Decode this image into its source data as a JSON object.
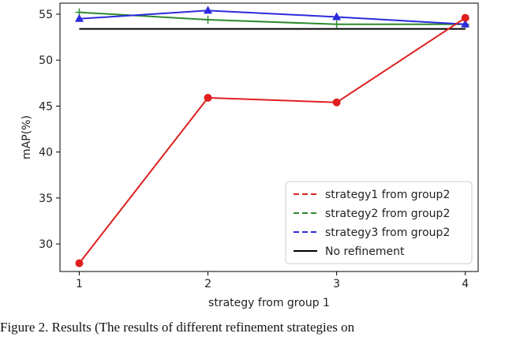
{
  "chart_data": {
    "type": "line",
    "xlabel": "strategy from group 1",
    "ylabel": "mAP(%)",
    "x": [
      1,
      2,
      3,
      4
    ],
    "x_ticks": [
      "1",
      "2",
      "3",
      "4"
    ],
    "y_ticks": [
      "30",
      "35",
      "40",
      "45",
      "50",
      "55"
    ],
    "xlim": [
      0.85,
      4.1
    ],
    "ylim": [
      27.0,
      56.2
    ],
    "legend_position": "lower-right",
    "series": [
      {
        "name": "strategy1 from group2",
        "values": [
          27.9,
          45.9,
          45.4,
          54.6
        ],
        "color": "#e02020",
        "marker": "circle",
        "line": "solid"
      },
      {
        "name": "strategy2 from group2",
        "values": [
          55.2,
          54.4,
          53.9,
          53.9
        ],
        "color": "#2e8b2e",
        "marker": "plus",
        "line": "solid"
      },
      {
        "name": "strategy3 from group2",
        "values": [
          54.5,
          55.4,
          54.7,
          53.9
        ],
        "color": "#2b2bdc",
        "marker": "triangle",
        "line": "solid"
      },
      {
        "name": "No refinement",
        "values": [
          53.4,
          53.4,
          53.4,
          53.4
        ],
        "color": "#000000",
        "marker": "none",
        "line": "solid"
      }
    ]
  },
  "caption": "Figure 2. Results (The results of different refinement strategies on"
}
